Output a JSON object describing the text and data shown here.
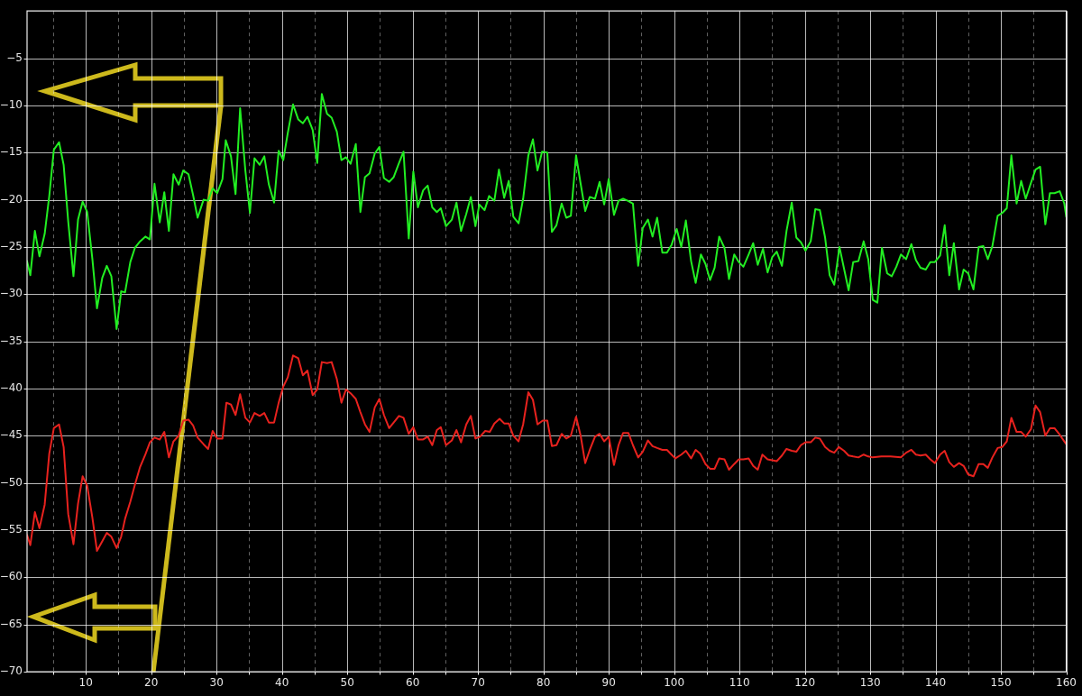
{
  "chart_data": {
    "type": "line",
    "xlim": [
      1,
      160
    ],
    "ylim": [
      -70,
      0
    ],
    "xticks": [
      {
        "value": 5,
        "label": null
      },
      10,
      {
        "value": 15,
        "label": null
      },
      20,
      {
        "value": 25,
        "label": null
      },
      30,
      {
        "value": 35,
        "label": null
      },
      40,
      {
        "value": 45,
        "label": null
      },
      50,
      {
        "value": 55,
        "label": null
      },
      60,
      {
        "value": 65,
        "label": null
      },
      70,
      {
        "value": 75,
        "label": null
      },
      80,
      {
        "value": 85,
        "label": null
      },
      90,
      {
        "value": 95,
        "label": null
      },
      100,
      {
        "value": 105,
        "label": null
      },
      110,
      {
        "value": 115,
        "label": null
      },
      120,
      {
        "value": 125,
        "label": null
      },
      130,
      {
        "value": 135,
        "label": null
      },
      140,
      {
        "value": 145,
        "label": null
      },
      150,
      {
        "value": 155,
        "label": null
      },
      160
    ],
    "yticks": [
      {
        "value": -5,
        "label": "−5"
      },
      {
        "value": -10,
        "label": "−10"
      },
      {
        "value": -15,
        "label": "−15"
      },
      {
        "value": -20,
        "label": "−20"
      },
      {
        "value": -25,
        "label": "−25"
      },
      {
        "value": -30,
        "label": "−30"
      },
      {
        "value": -35,
        "label": "−35"
      },
      {
        "value": -40,
        "label": "−40"
      },
      {
        "value": -45,
        "label": "−45"
      },
      {
        "value": -50,
        "label": "−50"
      },
      {
        "value": -55,
        "label": "−55"
      },
      {
        "value": -60,
        "label": "−60"
      },
      {
        "value": -65,
        "label": "−65"
      },
      {
        "value": -70,
        "label": "−70"
      }
    ],
    "grid": true,
    "marker": "none",
    "line_style": "solid",
    "series": [
      {
        "color": "#22ee22",
        "x": [
          1.0,
          1.5,
          2.2,
          2.9,
          3.7,
          4.4,
          5.1,
          5.9,
          6.6,
          7.3,
          8.1,
          8.8,
          9.5,
          10.2,
          11.0,
          11.7,
          12.5,
          13.2,
          13.9,
          14.7,
          15.4,
          16.0,
          16.8,
          17.5,
          18.3,
          19.1,
          19.8,
          20.5,
          21.3,
          22.0,
          22.7,
          23.4,
          24.2,
          24.9,
          25.7,
          26.4,
          27.1,
          28.0,
          28.7,
          29.4,
          30.1,
          30.9,
          31.4,
          32.2,
          32.9,
          33.6,
          34.4,
          35.1,
          35.8,
          36.6,
          37.3,
          38.0,
          38.8,
          39.5,
          40.2,
          40.9,
          41.7,
          42.5,
          43.2,
          43.9,
          44.7,
          45.4,
          46.1,
          46.9,
          47.6,
          48.4,
          49.1,
          49.8,
          50.5,
          51.3,
          52.0,
          52.7,
          53.4,
          54.2,
          54.9,
          55.6,
          56.4,
          57.1,
          57.8,
          58.6,
          59.4,
          60.1,
          60.8,
          61.6,
          62.3,
          63.0,
          63.7,
          64.3,
          65.1,
          66.0,
          66.7,
          67.4,
          68.2,
          68.9,
          69.6,
          70.2,
          71.0,
          71.7,
          72.5,
          73.2,
          74.0,
          74.7,
          75.4,
          76.2,
          76.9,
          77.7,
          78.4,
          79.1,
          79.8,
          80.6,
          81.3,
          82.0,
          82.8,
          83.5,
          84.2,
          85.0,
          85.7,
          86.4,
          87.1,
          87.9,
          88.6,
          89.3,
          90.0,
          90.8,
          91.5,
          92.2,
          92.9,
          93.7,
          94.5,
          95.2,
          96.0,
          96.7,
          97.4,
          98.2,
          98.9,
          99.6,
          100.4,
          101.1,
          101.8,
          102.6,
          103.3,
          104.1,
          104.8,
          105.5,
          106.2,
          106.9,
          107.7,
          108.4,
          109.2,
          109.9,
          110.6,
          111.4,
          112.1,
          112.8,
          113.6,
          114.3,
          115.0,
          115.7,
          116.5,
          117.2,
          118.0,
          118.7,
          119.4,
          120.1,
          120.9,
          121.6,
          122.3,
          123.1,
          123.8,
          124.5,
          125.3,
          126.0,
          126.7,
          127.4,
          128.2,
          129.0,
          129.7,
          130.4,
          131.1,
          131.8,
          132.6,
          133.3,
          134.0,
          134.7,
          135.5,
          136.3,
          137.0,
          137.7,
          138.5,
          139.2,
          139.9,
          140.7,
          141.4,
          142.1,
          142.8,
          143.6,
          144.3,
          145.0,
          145.8,
          146.6,
          147.3,
          148.0,
          148.7,
          149.5,
          150.2,
          150.9,
          151.6,
          152.4,
          153.1,
          153.8,
          154.6,
          155.3,
          156.0,
          156.8,
          157.5,
          158.2,
          159.0,
          159.7,
          160.0
        ],
        "values": [
          -26.5,
          -28.0,
          -23.3,
          -26.0,
          -23.6,
          -19.6,
          -14.7,
          -13.9,
          -16.3,
          -22.3,
          -28.1,
          -22.1,
          -20.2,
          -21.3,
          -26.3,
          -31.5,
          -28.3,
          -27.0,
          -28.1,
          -33.7,
          -29.7,
          -29.8,
          -26.6,
          -25.1,
          -24.4,
          -23.9,
          -24.2,
          -18.3,
          -22.4,
          -19.2,
          -23.3,
          -17.3,
          -18.4,
          -16.9,
          -17.3,
          -19.5,
          -21.9,
          -20.0,
          -20.1,
          -18.8,
          -19.3,
          -17.8,
          -13.7,
          -15.4,
          -19.4,
          -10.3,
          -16.9,
          -21.4,
          -15.6,
          -16.3,
          -15.4,
          -18.4,
          -20.3,
          -14.8,
          -15.8,
          -12.9,
          -9.9,
          -11.5,
          -11.9,
          -11.2,
          -12.6,
          -16.1,
          -8.8,
          -10.9,
          -11.3,
          -12.8,
          -15.8,
          -15.5,
          -16.2,
          -14.1,
          -21.3,
          -17.6,
          -17.2,
          -15.1,
          -14.4,
          -17.7,
          -18.1,
          -17.6,
          -16.3,
          -14.9,
          -24.1,
          -17.0,
          -20.8,
          -19.0,
          -18.5,
          -20.8,
          -21.3,
          -20.9,
          -22.8,
          -22.1,
          -20.3,
          -23.3,
          -21.5,
          -19.7,
          -22.8,
          -20.5,
          -21.1,
          -19.6,
          -20.1,
          -16.8,
          -19.8,
          -18.0,
          -21.8,
          -22.5,
          -19.9,
          -15.3,
          -13.6,
          -16.9,
          -14.9,
          -15.0,
          -23.4,
          -22.7,
          -20.4,
          -21.9,
          -21.7,
          -15.3,
          -18.3,
          -21.2,
          -19.7,
          -19.9,
          -18.1,
          -20.5,
          -17.8,
          -21.6,
          -20.1,
          -19.9,
          -20.1,
          -20.4,
          -27.0,
          -23.0,
          -22.1,
          -23.9,
          -21.9,
          -25.6,
          -25.6,
          -24.8,
          -23.1,
          -25.0,
          -22.2,
          -26.5,
          -28.8,
          -25.8,
          -26.8,
          -28.5,
          -27.2,
          -23.9,
          -25.1,
          -28.4,
          -25.8,
          -26.6,
          -27.1,
          -25.8,
          -24.6,
          -26.9,
          -25.2,
          -27.7,
          -26.1,
          -25.5,
          -27.0,
          -23.3,
          -20.3,
          -24.0,
          -24.5,
          -25.4,
          -24.4,
          -21.0,
          -21.1,
          -24.0,
          -28.0,
          -29.0,
          -25.0,
          -27.3,
          -29.6,
          -26.6,
          -26.5,
          -24.4,
          -26.3,
          -30.6,
          -30.9,
          -25.1,
          -27.8,
          -28.1,
          -27.1,
          -25.8,
          -26.3,
          -24.7,
          -26.4,
          -27.2,
          -27.4,
          -26.6,
          -26.6,
          -25.9,
          -22.7,
          -28.0,
          -24.6,
          -29.5,
          -27.4,
          -27.8,
          -29.5,
          -25.0,
          -24.9,
          -26.3,
          -24.9,
          -21.7,
          -21.4,
          -20.9,
          -15.3,
          -20.4,
          -18.0,
          -19.9,
          -18.2,
          -16.8,
          -16.5,
          -22.6,
          -19.3,
          -19.3,
          -19.1,
          -20.4,
          -21.8
        ]
      },
      {
        "color": "#e8221e",
        "x": [
          1.0,
          1.5,
          2.2,
          2.9,
          3.7,
          4.4,
          5.1,
          5.9,
          6.6,
          7.3,
          8.1,
          8.8,
          9.5,
          10.2,
          11.0,
          11.7,
          12.5,
          13.2,
          13.9,
          14.7,
          15.4,
          16.0,
          16.8,
          17.5,
          18.3,
          19.1,
          19.8,
          20.5,
          21.3,
          22.0,
          22.7,
          23.4,
          24.2,
          24.9,
          25.7,
          26.4,
          27.1,
          28.0,
          28.7,
          29.4,
          30.1,
          30.9,
          31.5,
          32.2,
          32.9,
          33.6,
          34.4,
          35.1,
          35.8,
          36.6,
          37.3,
          38.0,
          38.8,
          39.5,
          40.2,
          40.9,
          41.7,
          42.5,
          43.2,
          43.9,
          44.7,
          45.4,
          46.1,
          46.9,
          47.6,
          48.4,
          49.1,
          49.8,
          50.5,
          51.3,
          52.0,
          52.7,
          53.4,
          54.2,
          54.9,
          55.6,
          56.4,
          57.1,
          57.9,
          58.6,
          59.4,
          60.1,
          60.8,
          61.6,
          62.3,
          63.0,
          63.7,
          64.3,
          65.1,
          66.0,
          66.7,
          67.4,
          68.2,
          68.9,
          69.6,
          70.3,
          71.1,
          71.8,
          72.5,
          73.3,
          74.0,
          74.7,
          75.4,
          76.2,
          76.9,
          77.7,
          78.4,
          79.1,
          79.9,
          80.6,
          81.3,
          82.0,
          82.8,
          83.5,
          84.2,
          85.0,
          85.7,
          86.4,
          87.1,
          87.9,
          88.6,
          89.3,
          90.0,
          90.8,
          91.5,
          92.2,
          93.0,
          93.7,
          94.5,
          95.2,
          96.0,
          96.7,
          97.4,
          98.2,
          98.9,
          99.6,
          100.2,
          101.1,
          101.8,
          102.6,
          103.3,
          104.0,
          104.8,
          105.5,
          106.2,
          106.9,
          107.7,
          108.4,
          109.2,
          109.9,
          110.6,
          111.4,
          112.1,
          112.8,
          113.5,
          114.3,
          115.0,
          115.7,
          116.5,
          117.2,
          118.0,
          118.7,
          119.4,
          120.1,
          120.9,
          121.6,
          122.3,
          123.1,
          123.8,
          124.5,
          125.2,
          126.0,
          126.7,
          127.4,
          128.2,
          129.0,
          129.7,
          130.4,
          131.7,
          133.1,
          134.7,
          135.5,
          136.3,
          137.0,
          137.7,
          138.5,
          139.2,
          139.9,
          140.7,
          141.4,
          142.1,
          142.8,
          143.6,
          144.3,
          145.0,
          145.8,
          146.6,
          147.3,
          148.0,
          148.7,
          149.5,
          150.2,
          150.9,
          151.6,
          152.4,
          153.1,
          153.8,
          154.6,
          155.3,
          156.0,
          156.8,
          157.5,
          158.2,
          159.0,
          159.7,
          160.0
        ],
        "values": [
          -55.5,
          -56.6,
          -53.1,
          -54.8,
          -52.3,
          -46.9,
          -44.2,
          -43.8,
          -46.2,
          -53.3,
          -56.5,
          -52.2,
          -49.3,
          -50.3,
          -53.7,
          -57.2,
          -56.2,
          -55.3,
          -55.7,
          -56.9,
          -55.7,
          -53.8,
          -52.0,
          -50.2,
          -48.3,
          -47.0,
          -45.7,
          -45.2,
          -45.4,
          -44.6,
          -47.3,
          -45.6,
          -45.0,
          -43.4,
          -43.3,
          -43.9,
          -45.2,
          -45.9,
          -46.4,
          -44.5,
          -45.3,
          -45.3,
          -41.5,
          -41.7,
          -42.8,
          -40.6,
          -43.1,
          -43.6,
          -42.6,
          -42.9,
          -42.6,
          -43.6,
          -43.6,
          -41.5,
          -39.8,
          -38.8,
          -36.5,
          -36.8,
          -38.6,
          -38.1,
          -40.7,
          -40.1,
          -37.2,
          -37.3,
          -37.2,
          -39.0,
          -41.5,
          -40.1,
          -40.5,
          -41.1,
          -42.5,
          -43.8,
          -44.6,
          -42.0,
          -41.1,
          -42.8,
          -44.2,
          -43.6,
          -42.9,
          -43.1,
          -44.8,
          -44.1,
          -45.4,
          -45.4,
          -45.1,
          -46.0,
          -44.4,
          -44.1,
          -46.0,
          -45.5,
          -44.4,
          -45.7,
          -43.8,
          -42.9,
          -45.3,
          -45.1,
          -44.5,
          -44.6,
          -43.7,
          -43.2,
          -43.7,
          -43.7,
          -45.0,
          -45.6,
          -43.8,
          -40.4,
          -41.2,
          -43.8,
          -43.4,
          -43.4,
          -46.1,
          -46.0,
          -44.8,
          -45.3,
          -45.0,
          -43.0,
          -45.0,
          -47.9,
          -46.5,
          -45.1,
          -44.8,
          -45.6,
          -45.1,
          -48.1,
          -46.0,
          -44.7,
          -44.7,
          -46.0,
          -47.3,
          -46.7,
          -45.5,
          -46.1,
          -46.3,
          -46.5,
          -46.5,
          -47.0,
          -47.4,
          -47.0,
          -46.6,
          -47.4,
          -46.5,
          -46.9,
          -48.0,
          -48.5,
          -48.5,
          -47.4,
          -47.5,
          -48.6,
          -48.0,
          -47.5,
          -47.5,
          -47.4,
          -48.2,
          -48.6,
          -47.0,
          -47.5,
          -47.6,
          -47.7,
          -47.1,
          -46.4,
          -46.6,
          -46.7,
          -46.0,
          -45.7,
          -45.7,
          -45.2,
          -45.3,
          -46.2,
          -46.6,
          -46.8,
          -46.2,
          -46.6,
          -47.1,
          -47.2,
          -47.3,
          -47.0,
          -47.2,
          -47.3,
          -47.2,
          -47.2,
          -47.3,
          -46.8,
          -46.5,
          -47.0,
          -47.1,
          -47.0,
          -47.5,
          -47.9,
          -47.0,
          -46.6,
          -47.8,
          -48.3,
          -47.9,
          -48.2,
          -49.1,
          -49.3,
          -48.0,
          -48.0,
          -48.4,
          -47.3,
          -46.3,
          -46.2,
          -45.6,
          -43.1,
          -44.6,
          -44.6,
          -45.1,
          -44.3,
          -41.8,
          -42.5,
          -45.0,
          -44.2,
          -44.2,
          -44.9,
          -45.6,
          -45.9
        ]
      }
    ]
  }
}
